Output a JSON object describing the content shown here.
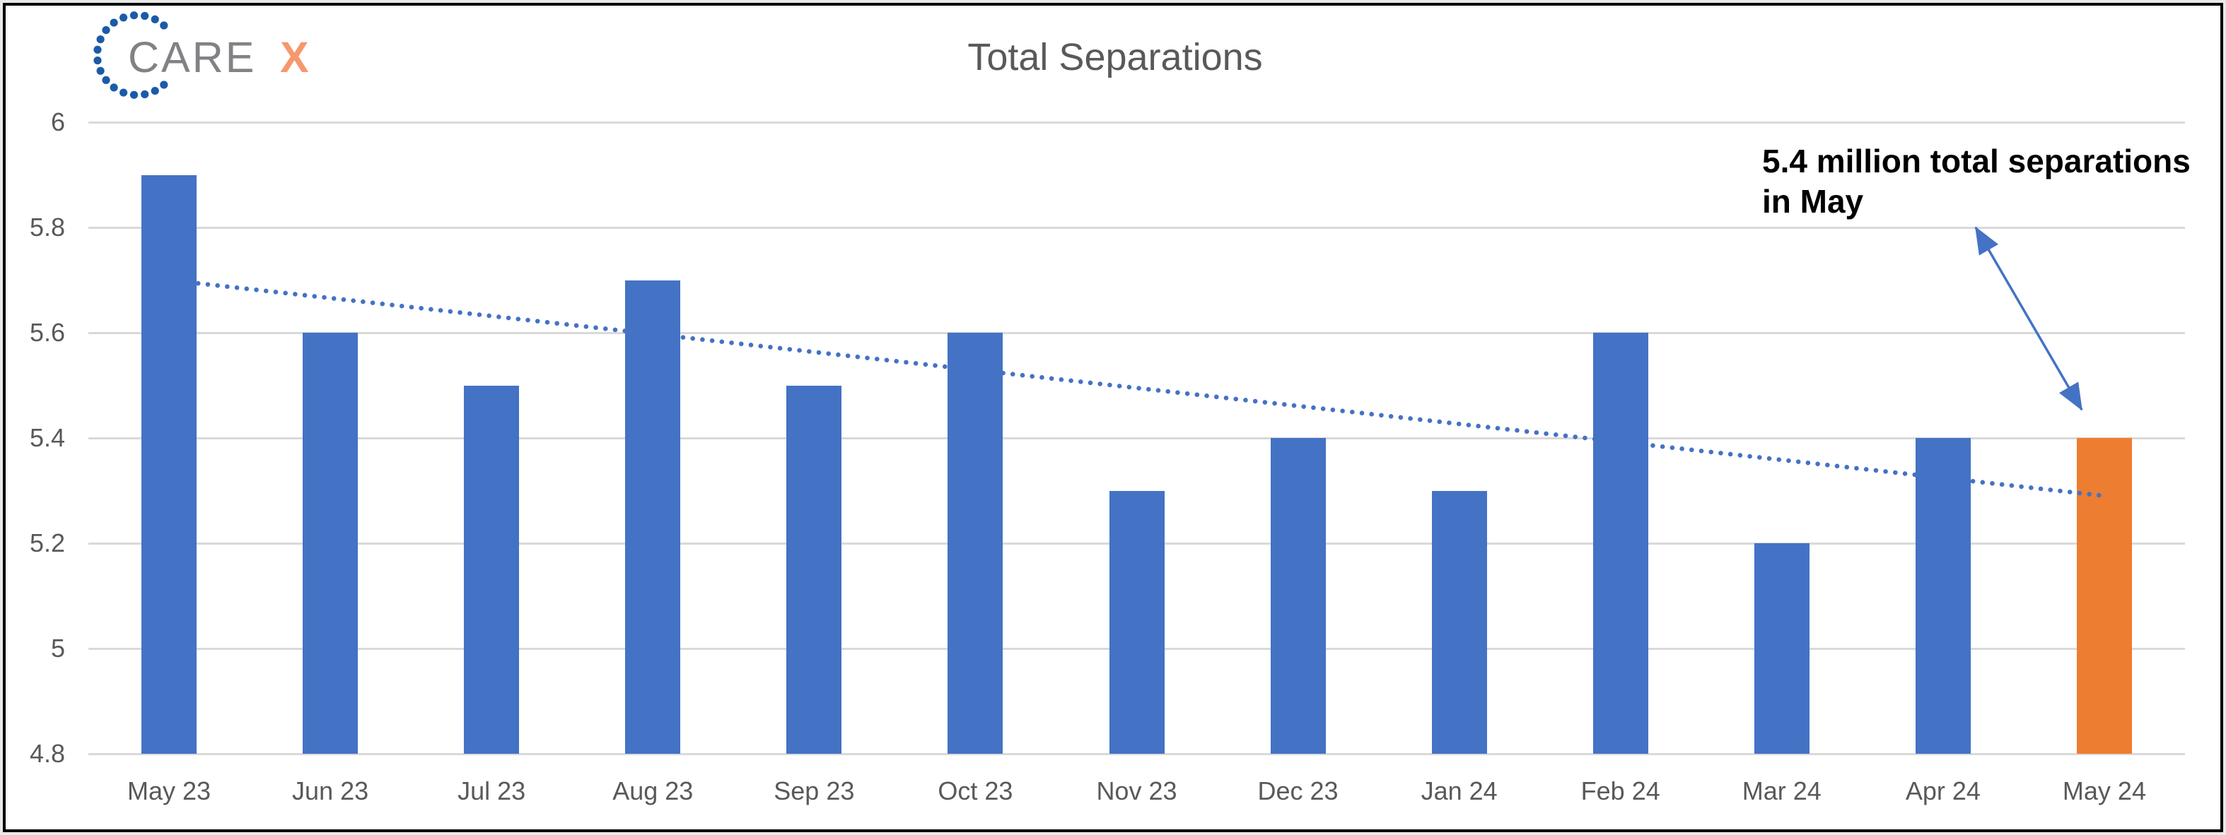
{
  "window": {
    "background": "#ffffff",
    "border_color": "#000000"
  },
  "logo": {
    "care_text": "CARE",
    "x_text": "X",
    "care_color": "#808285",
    "x_color": "#F7976C",
    "dot_color": "#1A5BA9"
  },
  "header": {
    "title": "Total Separations",
    "title_color": "#595959"
  },
  "annotation": {
    "line1": "5.4 million total separations",
    "line2": "in May",
    "text_color": "#000000",
    "arrow_color": "#4472C4"
  },
  "colors": {
    "bar": "#4472C4",
    "highlight_bar": "#ED7D31",
    "trendline": "#4472C4",
    "gridline": "#d9d9d9",
    "axis_text": "#595959"
  },
  "chart_data": {
    "type": "bar",
    "title": "Total Separations",
    "categories": [
      "May 23",
      "Jun 23",
      "Jul 23",
      "Aug 23",
      "Sep 23",
      "Oct 23",
      "Nov 23",
      "Dec 23",
      "Jan 24",
      "Feb 24",
      "Mar 24",
      "Apr 24",
      "May 24"
    ],
    "values": [
      5.9,
      5.6,
      5.5,
      5.7,
      5.5,
      5.6,
      5.3,
      5.4,
      5.3,
      5.6,
      5.2,
      5.4,
      5.4
    ],
    "highlighted_category": "May 24",
    "xlabel": "",
    "ylabel": "",
    "ylim": [
      4.8,
      6.0
    ],
    "ytick_step": 0.2,
    "yticks": [
      "6",
      "5.8",
      "5.6",
      "5.4",
      "5.2",
      "5",
      "4.8"
    ],
    "grid": true,
    "legend": "none",
    "trendline": {
      "style": "dotted",
      "start_value": 5.7,
      "end_value": 5.29
    }
  }
}
